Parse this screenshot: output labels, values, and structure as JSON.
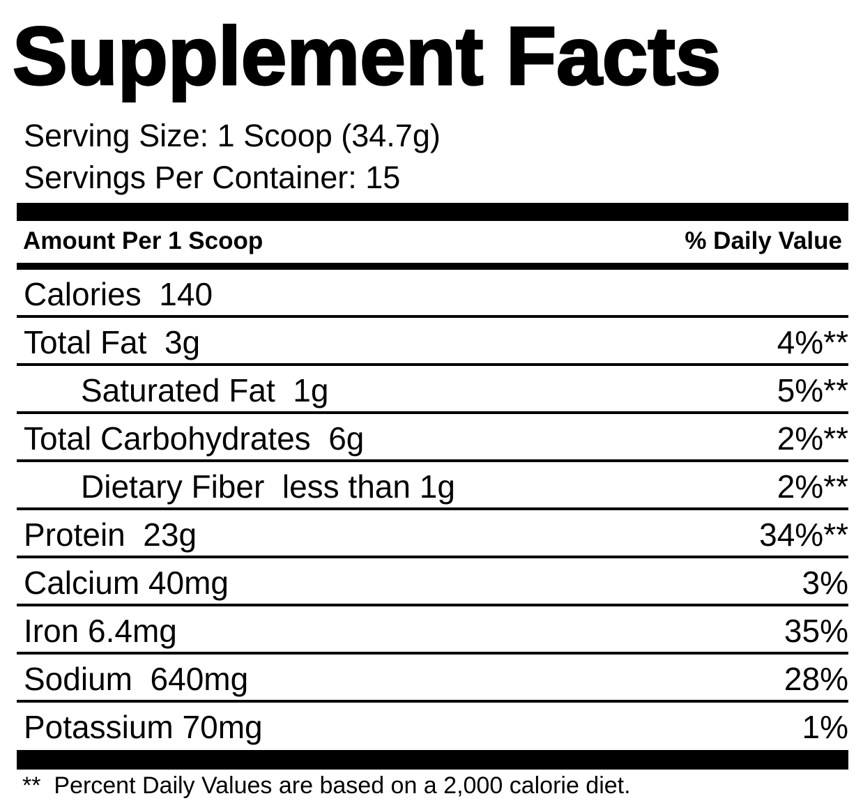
{
  "title": "Supplement Facts",
  "serving_size": "Serving Size: 1 Scoop (34.7g)",
  "servings_per_container": "Servings Per Container: 15",
  "header": {
    "amount_label": "Amount Per 1 Scoop",
    "dv_label": "% Daily Value"
  },
  "nutrients": [
    {
      "name": "Calories  140",
      "dv": "",
      "indent": false
    },
    {
      "name": "Total Fat  3g",
      "dv": "4%**",
      "indent": false
    },
    {
      "name": "Saturated Fat  1g",
      "dv": "5%**",
      "indent": true
    },
    {
      "name": "Total Carbohydrates  6g",
      "dv": "2%**",
      "indent": false
    },
    {
      "name": "Dietary Fiber  less than 1g",
      "dv": "2%**",
      "indent": true
    },
    {
      "name": "Protein  23g",
      "dv": "34%**",
      "indent": false
    },
    {
      "name": "Calcium 40mg",
      "dv": "3%",
      "indent": false
    },
    {
      "name": "Iron 6.4mg",
      "dv": "35%",
      "indent": false
    },
    {
      "name": "Sodium  640mg",
      "dv": "28%",
      "indent": false
    },
    {
      "name": "Potassium 70mg",
      "dv": "1%",
      "indent": false
    }
  ],
  "footnote": "**  Percent Daily Values are based on a 2,000 calorie diet."
}
